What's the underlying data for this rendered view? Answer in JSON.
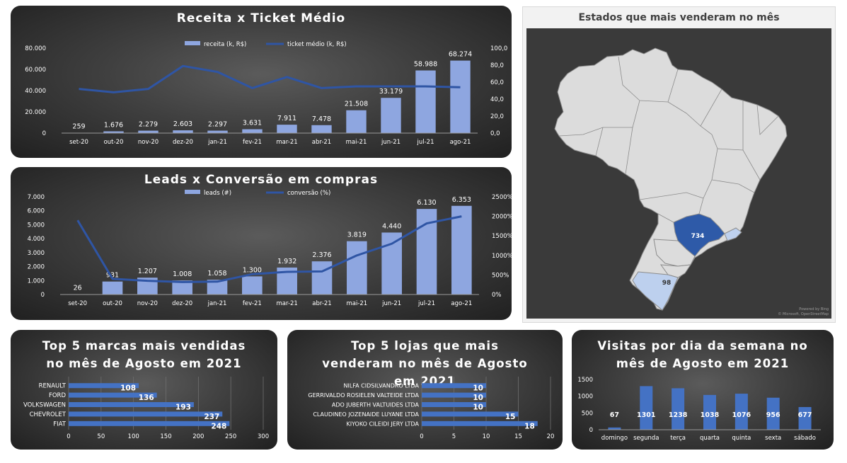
{
  "colors": {
    "bar": "#8ea6e0",
    "bar_strong": "#4472c4",
    "line": "#2f55a4",
    "text": "#ffffff",
    "map_land": "#dcdcdc",
    "map_sp": "#2e5aa8",
    "map_light": "#bdd0ee"
  },
  "chart_data": [
    {
      "type": "bar",
      "title": "Receita x Ticket Médio",
      "categories": [
        "set-20",
        "out-20",
        "nov-20",
        "dez-20",
        "jan-21",
        "fev-21",
        "mar-21",
        "abr-21",
        "mai-21",
        "jun-21",
        "jul-21",
        "ago-21"
      ],
      "series": [
        {
          "name": "receita (k, R$)",
          "type": "bar",
          "axis": "left",
          "values": [
            259,
            1676,
            2279,
            2603,
            2297,
            3631,
            7911,
            7478,
            21508,
            33179,
            58988,
            68274
          ],
          "labels": [
            "259",
            "1.676",
            "2.279",
            "2.603",
            "2.297",
            "3.631",
            "7.911",
            "7.478",
            "21.508",
            "33.179",
            "58.988",
            "68.274"
          ]
        },
        {
          "name": "ticket médio (k, R$)",
          "type": "line",
          "axis": "right",
          "values": [
            52,
            48,
            52,
            79,
            72,
            53,
            66,
            53,
            55,
            55,
            55,
            54
          ]
        }
      ],
      "ylim": [
        0,
        80000
      ],
      "y_ticks": [
        "0",
        "20.000",
        "40.000",
        "60.000",
        "80.000"
      ],
      "y2lim": [
        0,
        100
      ],
      "y2_ticks": [
        "0,0",
        "20,0",
        "40,0",
        "60,0",
        "80,0",
        "100,0"
      ],
      "legend": "top"
    },
    {
      "type": "bar",
      "title": "Leads x Conversão em compras",
      "categories": [
        "set-20",
        "out-20",
        "nov-20",
        "dez-20",
        "jan-21",
        "fev-21",
        "mar-21",
        "abr-21",
        "mai-21",
        "jun-21",
        "jul-21",
        "ago-21"
      ],
      "series": [
        {
          "name": "leads (#)",
          "type": "bar",
          "axis": "left",
          "values": [
            26,
            931,
            1207,
            1008,
            1058,
            1300,
            1932,
            2376,
            3819,
            4440,
            6130,
            6353
          ],
          "labels": [
            "26",
            "931",
            "1.207",
            "1.008",
            "1.058",
            "1.300",
            "1.932",
            "2.376",
            "3.819",
            "4.440",
            "6.130",
            "6.353"
          ]
        },
        {
          "name": "conversão (%)",
          "type": "line",
          "axis": "right",
          "values": [
            1900,
            400,
            350,
            320,
            330,
            520,
            580,
            590,
            1000,
            1300,
            1820,
            2000
          ]
        }
      ],
      "ylim": [
        0,
        7000
      ],
      "y_ticks": [
        "0",
        "1.000",
        "2.000",
        "3.000",
        "4.000",
        "5.000",
        "6.000",
        "7.000"
      ],
      "y2lim": [
        0,
        2500
      ],
      "y2_ticks": [
        "0%",
        "500%",
        "1000%",
        "1500%",
        "2000%",
        "2500%"
      ],
      "legend": "top"
    },
    {
      "type": "bar",
      "orientation": "horizontal",
      "title": "Top 5 marcas mais vendidas no mês de Agosto em 2021",
      "categories": [
        "RENAULT",
        "FORD",
        "VOLKSWAGEN",
        "CHEVROLET",
        "FIAT"
      ],
      "values": [
        108,
        136,
        193,
        237,
        248
      ],
      "xlim": [
        0,
        300
      ],
      "x_ticks": [
        "0",
        "50",
        "100",
        "150",
        "200",
        "250",
        "300"
      ]
    },
    {
      "type": "bar",
      "orientation": "horizontal",
      "title": "Top 5 lojas que mais venderam no mês de Agosto em 2021",
      "categories": [
        "NILFA CIDSILVANDRO LTDA",
        "GERRIVALDO ROSIELEN VALTEIDE LTDA",
        "ADO JUBERTH VALTUIDES LTDA",
        "CLAUDINEO JOZENAIDE LUYANE LTDA",
        "KIYOKO CILEIDI JERY LTDA"
      ],
      "values": [
        10,
        10,
        10,
        15,
        18
      ],
      "xlim": [
        0,
        20
      ],
      "x_ticks": [
        "0",
        "5",
        "10",
        "15",
        "20"
      ]
    },
    {
      "type": "bar",
      "title": "Visitas por dia da semana no mês de Agosto em 2021",
      "categories": [
        "domingo",
        "segunda",
        "terça",
        "quarta",
        "quinta",
        "sexta",
        "sábado"
      ],
      "values": [
        67,
        1301,
        1238,
        1038,
        1076,
        956,
        677
      ],
      "ylim": [
        0,
        1500
      ],
      "y_ticks": [
        "0",
        "500",
        "1000",
        "1500"
      ]
    }
  ],
  "map": {
    "title": "Estados que mais venderam no mês",
    "labels": {
      "sp": "734",
      "rs": "98"
    },
    "attribution": [
      "Powered by Bing",
      "© Microsoft, OpenStreetMap"
    ]
  }
}
